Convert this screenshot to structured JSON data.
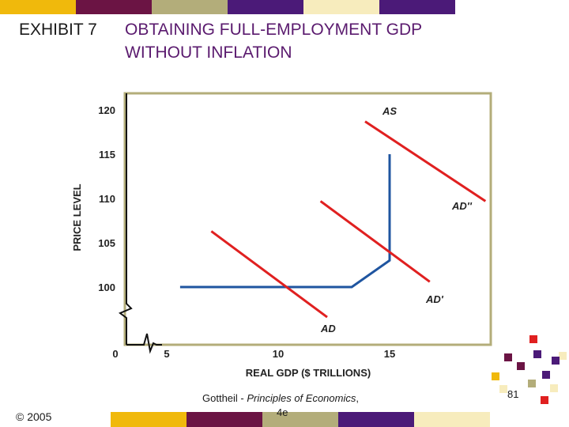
{
  "header": {
    "exhibit_label": "EXHIBIT 7",
    "title_line1": "OBTAINING FULL-EMPLOYMENT GDP",
    "title_line2": "WITHOUT INFLATION"
  },
  "footer": {
    "copyright": "© 2005",
    "citation_line1_prefix": "Gottheil - ",
    "citation_line1_italic": "Principles of Economics",
    "citation_line1_suffix": ",",
    "citation_line2": "4e",
    "page_number": "81"
  },
  "colors": {
    "title": "#5a1a6e",
    "ad_curves": "#e02020",
    "as_curve": "#1f55a0",
    "frame": "#b3ad7a",
    "bar_gold": "#f0b90c",
    "bar_maroon": "#6b1444",
    "bar_olive": "#b3ad7a",
    "bar_purple": "#4b1a78",
    "bar_cream": "#f7ecbd"
  },
  "chart_data": {
    "type": "line",
    "title": "",
    "xlabel": "REAL GDP ($ TRILLIONS)",
    "ylabel": "PRICE LEVEL",
    "x_ticks": [
      "0",
      "5",
      "10",
      "15"
    ],
    "y_ticks": [
      "100",
      "105",
      "110",
      "115",
      "120"
    ],
    "x_tick_values": [
      0,
      5,
      10,
      15
    ],
    "y_tick_values": [
      100,
      105,
      110,
      115,
      120
    ],
    "xlim": [
      5,
      20
    ],
    "ylim": [
      100,
      120
    ],
    "grid": false,
    "series": [
      {
        "name": "AS",
        "color": "#1f55a0",
        "points": [
          [
            5.6,
            100
          ],
          [
            13.3,
            100
          ],
          [
            15,
            103
          ],
          [
            15,
            115
          ]
        ]
      },
      {
        "name": "AD",
        "color": "#e02020",
        "points": [
          [
            7,
            106.3
          ],
          [
            12.2,
            96.6
          ]
        ]
      },
      {
        "name": "AD'",
        "color": "#e02020",
        "points": [
          [
            11.9,
            109.7
          ],
          [
            16.8,
            100.6
          ]
        ]
      },
      {
        "name": "AD''",
        "color": "#e02020",
        "points": [
          [
            13.9,
            118.7
          ],
          [
            19.3,
            109.7
          ]
        ]
      }
    ]
  }
}
